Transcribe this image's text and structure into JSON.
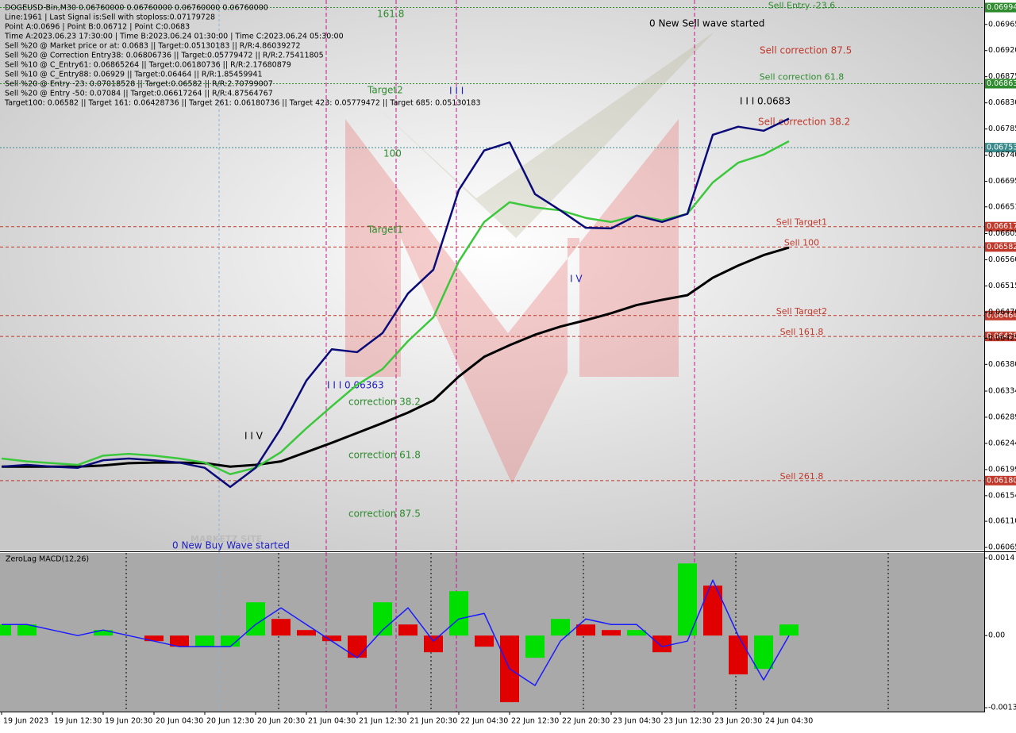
{
  "chart_data": [
    {
      "type": "line",
      "info_lines": [
        "DOGEUSD-Bin,M30  0.06760000 0.06760000 0.06760000 0.06760000",
        "Line:1961 | Last Signal is:Sell with stoploss:0.07179728",
        "Point A:0.0696 | Point B:0.06712 | Point C:0.0683",
        "Time A:2023.06.23 17:30:00 | Time B:2023.06.24 01:30:00 | Time C:2023.06.24 05:30:00",
        "Sell %20 @ Market price or at: 0.0683 || Target:0.05130183 || R/R:4.86039272",
        "Sell %20 @ Correction Entry38: 0.06806736 || Target:0.05779472 || R/R:2.75411805",
        "Sell %10 @ C_Entry61: 0.06865264 || Target:0.06180736 || R/R:2.17680879",
        "Sell %10 @ C_Entry88: 0.06929 || Target:0.06464 || R/R:1.85459941",
        "Sell %20 @ Entry -23: 0.07018528 || Target:0.06582 || R/R:2.70799007",
        "Sell %20 @ Entry -50: 0.07084 || Target:0.06617264 || R/R:4.87564767",
        "Target100: 0.06582 || Target 161: 0.06428736 || Target 261: 0.06180736 || Target 423: 0.05779472 || Target 685: 0.05130183"
      ],
      "categories": [
        "19 Jun 2023",
        null,
        "19 Jun 12:30",
        null,
        "19 Jun 20:30",
        null,
        "20 Jun 04:30",
        null,
        "20 Jun 12:30",
        null,
        "20 Jun 20:30",
        null,
        "21 Jun 04:30",
        null,
        "21 Jun 12:30",
        null,
        "21 Jun 20:30",
        null,
        "22 Jun 04:30",
        null,
        "22 Jun 12:30",
        null,
        "22 Jun 20:30",
        null,
        "23 Jun 04:30",
        null,
        "23 Jun 12:30",
        null,
        "23 Jun 20:30",
        null,
        "24 Jun 04:30",
        null
      ],
      "series": [
        {
          "color": "#000000",
          "values": [
            0.06204,
            0.06204,
            0.06204,
            0.06204,
            0.06206,
            0.0621,
            0.06211,
            0.06211,
            0.0621,
            0.06204,
            0.06207,
            0.06213,
            0.06229,
            0.06245,
            0.06262,
            0.06279,
            0.06297,
            0.06318,
            0.06359,
            0.06393,
            0.06413,
            0.06431,
            0.06445,
            0.06456,
            0.06468,
            0.06482,
            0.06491,
            0.06499,
            0.06529,
            0.0655,
            0.06568,
            0.06581
          ]
        },
        {
          "color": "#3cc83c",
          "values": [
            0.06218,
            0.06213,
            0.0621,
            0.06207,
            0.06223,
            0.06226,
            0.06223,
            0.06218,
            0.06211,
            0.06191,
            0.06202,
            0.06229,
            0.0627,
            0.06308,
            0.06345,
            0.06372,
            0.0642,
            0.06461,
            0.06557,
            0.06625,
            0.06659,
            0.0665,
            0.06645,
            0.06632,
            0.06625,
            0.06636,
            0.06628,
            0.06639,
            0.06693,
            0.06727,
            0.06741,
            0.06764
          ]
        },
        {
          "color": "#0a0a78",
          "values": [
            0.06204,
            0.06207,
            0.06204,
            0.06202,
            0.06215,
            0.06218,
            0.06215,
            0.06211,
            0.06202,
            0.06169,
            0.06202,
            0.0627,
            0.06352,
            0.06406,
            0.06401,
            0.06434,
            0.06502,
            0.06543,
            0.0668,
            0.06748,
            0.06762,
            0.06673,
            0.06645,
            0.06615,
            0.06614,
            0.06636,
            0.06625,
            0.06639,
            0.06775,
            0.06789,
            0.06782,
            0.06803
          ]
        }
      ],
      "ylim": [
        0.06061,
        0.07007
      ],
      "yticks": [
        0.06965,
        {
          "value": 0.0692,
          "label": "0.06920"
        },
        0.06875,
        {
          "value": 0.0683,
          "label": "0.06830"
        },
        0.06785,
        {
          "value": 0.0674,
          "label": "0.06740"
        },
        0.06695,
        0.06651,
        0.06605,
        {
          "value": 0.0656,
          "label": "0.06560"
        },
        0.06515,
        {
          "value": 0.0647,
          "label": "0.06470"
        },
        0.06425,
        {
          "value": 0.0638,
          "label": "0.06380"
        },
        0.06334,
        0.06289,
        0.06244,
        0.06199,
        0.06154,
        {
          "value": 0.0611,
          "label": "0.06110"
        },
        0.06065
      ],
      "levels": [
        {
          "name": "Sell Entry -23.6",
          "value": 0.06994,
          "color": "#2e8b2e"
        },
        {
          "name": "Sell correction 61.8",
          "value": 0.06863,
          "color": "#2e8b2e"
        },
        {
          "value": 0.06753,
          "color": "#3a8c8c"
        },
        {
          "name": "Sell Target1",
          "value": 0.06617,
          "color": "#c0392b"
        },
        {
          "name": "Sell 100",
          "value": 0.06582,
          "color": "#c0392b"
        },
        {
          "name": "Sell Target2",
          "value": 0.06464,
          "color": "#c0392b"
        },
        {
          "name": "Sell 161.8",
          "value": 0.06428,
          "color": "#c0392b"
        },
        {
          "name": "Sell  261.8",
          "value": {
            "value": 0.0618,
            "label": "0.06180"
          },
          "color": "#c0392b"
        }
      ],
      "annotations": [
        "161.8",
        "Target2",
        "100",
        "Target1",
        "correction 38.2",
        "correction 61.8",
        "correction 87.5",
        "0 New Buy Wave started",
        "0 New Sell wave started",
        "Sell correction 87.5",
        "Sell correction 38.2",
        "I I I 0.0683",
        "I I I 0.06363",
        "I I I",
        "I V",
        "I I V"
      ]
    },
    {
      "type": "bar",
      "title": "ZeroLag MACD(12,26)",
      "up_color": "#00e000",
      "down_color": "#e00000",
      "values": [
        0.0002,
        0.0002,
        0.0,
        0.0,
        0.0001,
        0.0,
        -0.0001,
        -0.0002,
        -0.0002,
        -0.0002,
        0.0006,
        0.0003,
        0.0001,
        -0.0001,
        -0.0004,
        0.0006,
        0.0002,
        -0.0003,
        0.0008,
        -0.0002,
        -0.0012,
        -0.0004,
        0.0003,
        0.0002,
        0.0001,
        0.0001,
        -0.0003,
        0.0013,
        0.0009,
        -0.0007,
        -0.0006,
        0.0002
      ],
      "signal": {
        "color": "#1a1aff",
        "values": [
          0.0002,
          0.0002,
          0.0001,
          0.0,
          0.0001,
          0.0,
          -0.0001,
          -0.0002,
          -0.0002,
          -0.0002,
          0.0002,
          0.0005,
          0.0002,
          -0.0001,
          -0.0004,
          0.0001,
          0.0005,
          -0.0001,
          0.0003,
          0.0004,
          -0.0006,
          -0.0009,
          -0.0001,
          0.0003,
          0.0002,
          0.0002,
          -0.0002,
          -0.0001,
          0.001,
          0.0,
          -0.0008,
          0.0
        ]
      },
      "ylim": [
        -0.00137,
        0.00149
      ],
      "yticks": [
        0.0014,
        {
          "value": 0,
          "label": "0.00"
        },
        -0.0013
      ]
    }
  ]
}
